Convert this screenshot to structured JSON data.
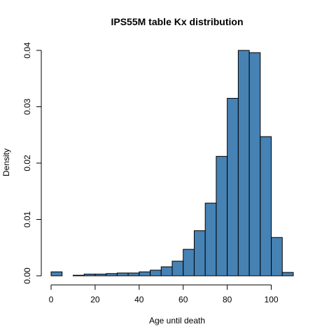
{
  "chart_data": {
    "type": "bar",
    "subtype": "histogram",
    "title": "IPS55M table Kx distribution",
    "xlabel": "Age until death",
    "ylabel": "Density",
    "bin_width": 5,
    "bins": [
      {
        "start": 0,
        "end": 5,
        "density": 0.0007
      },
      {
        "start": 5,
        "end": 10,
        "density": 0.0
      },
      {
        "start": 10,
        "end": 15,
        "density": 0.0001
      },
      {
        "start": 15,
        "end": 20,
        "density": 0.0003
      },
      {
        "start": 20,
        "end": 25,
        "density": 0.0003
      },
      {
        "start": 25,
        "end": 30,
        "density": 0.0004
      },
      {
        "start": 30,
        "end": 35,
        "density": 0.0005
      },
      {
        "start": 35,
        "end": 40,
        "density": 0.0005
      },
      {
        "start": 40,
        "end": 45,
        "density": 0.0007
      },
      {
        "start": 45,
        "end": 50,
        "density": 0.001
      },
      {
        "start": 50,
        "end": 55,
        "density": 0.0016
      },
      {
        "start": 55,
        "end": 60,
        "density": 0.0026
      },
      {
        "start": 60,
        "end": 65,
        "density": 0.0047
      },
      {
        "start": 65,
        "end": 70,
        "density": 0.008
      },
      {
        "start": 70,
        "end": 75,
        "density": 0.0129
      },
      {
        "start": 75,
        "end": 80,
        "density": 0.0212
      },
      {
        "start": 80,
        "end": 85,
        "density": 0.0315
      },
      {
        "start": 85,
        "end": 90,
        "density": 0.04
      },
      {
        "start": 90,
        "end": 95,
        "density": 0.0396
      },
      {
        "start": 95,
        "end": 100,
        "density": 0.0247
      },
      {
        "start": 100,
        "end": 105,
        "density": 0.0068
      },
      {
        "start": 105,
        "end": 110,
        "density": 0.0006
      }
    ],
    "xlim": [
      0,
      110
    ],
    "ylim": [
      0,
      0.04
    ],
    "x_ticks": [
      "0",
      "20",
      "40",
      "60",
      "80",
      "100"
    ],
    "y_ticks": [
      "0.00",
      "0.01",
      "0.02",
      "0.03",
      "0.04"
    ],
    "grid": false,
    "legend": "none",
    "bar_color": "#4682b4",
    "bar_border_color": "#000000"
  }
}
